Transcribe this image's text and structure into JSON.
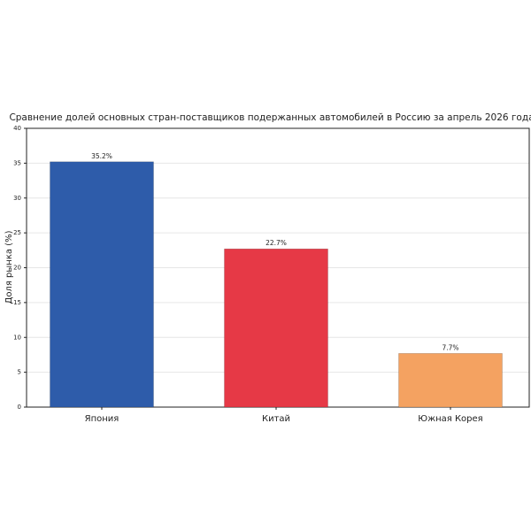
{
  "chart_data": {
    "type": "bar",
    "title": "Сравнение долей основных стран-поставщиков подержанных автомобилей в Россию за апрель 2026 года",
    "y_label": "Доля рынка (%)",
    "categories": [
      "Япония",
      "Китай",
      "Южная Корея"
    ],
    "values": [
      35.2,
      22.7,
      7.7
    ],
    "value_labels": [
      "35.2%",
      "22.7%",
      "7.7%"
    ],
    "colors": [
      "#2e5caa",
      "#e63946",
      "#f4a261"
    ],
    "ylim": [
      0,
      40
    ],
    "yticks": [
      0,
      5,
      10,
      15,
      20,
      25,
      30,
      35,
      40
    ],
    "grid": true
  }
}
